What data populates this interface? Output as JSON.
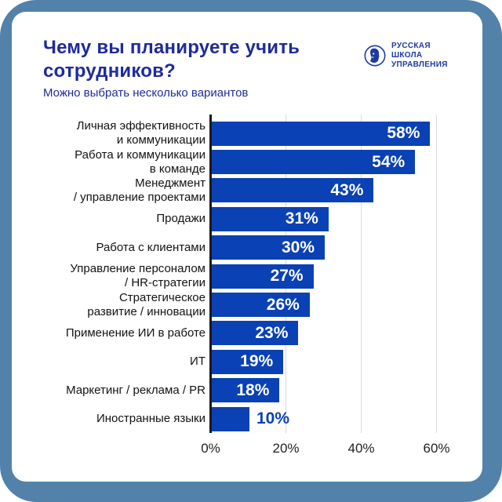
{
  "theme": {
    "frame_color": "#5282aa",
    "card_color": "#ffffff",
    "title_color": "#1e2b9a",
    "subtitle_color": "#1e2b9a",
    "category_label_color": "#121212",
    "tick_label_color": "#1f1f1f",
    "gridline_color": "#dadada",
    "axis_color": "#1a1a1a"
  },
  "logo": {
    "icon": "face-profile-circle-icon",
    "color": "#1d3aa3",
    "lines": [
      "РУССКАЯ",
      "ШКОЛА",
      "УПРАВЛЕНИЯ"
    ]
  },
  "chart_data": {
    "type": "bar",
    "orientation": "horizontal",
    "title": "Чему вы планируете учить сотрудников?",
    "subtitle": "Можно выбрать несколько вариантов",
    "categories": [
      "Личная эффективность\nи коммуникации",
      "Работа и коммуникации\nв команде",
      "Менеджмент\n/ управление проектами",
      "Продажи",
      "Работа с клиентами",
      "Управление персоналом\n/ HR-стратегии",
      "Стратегическое\nразвитие / инновации",
      "Применение ИИ в работе",
      "ИТ",
      "Маркетинг / реклама / PR",
      "Иностранные языки"
    ],
    "values": [
      58,
      54,
      43,
      31,
      30,
      27,
      26,
      23,
      19,
      18,
      10
    ],
    "value_suffix": "%",
    "xticks": [
      0,
      20,
      40,
      60
    ],
    "xtick_labels": [
      "0%",
      "20%",
      "40%",
      "60%"
    ],
    "xlim": [
      0,
      65
    ],
    "grid": "vertical-gridlines-at-xticks",
    "legend": "none",
    "bar_color": "#0a41b4",
    "value_label_inside_color": "#ffffff",
    "value_label_outside_color": "#0a41b4",
    "outside_label_threshold": 15
  }
}
